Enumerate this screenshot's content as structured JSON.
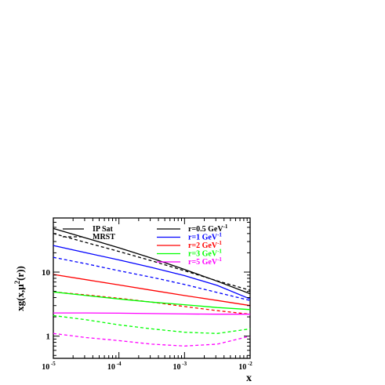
{
  "chart_data": {
    "type": "line",
    "title": "",
    "xlabel": "x",
    "ylabel": "xg(x,μ²(r))",
    "ylabel_parts": {
      "prefix": "xg(x,μ",
      "sup": "2",
      "suffix": "(r))"
    },
    "xscale": "log",
    "yscale": "log",
    "xlim": [
      1e-05,
      0.01
    ],
    "ylim": [
      0.45,
      70
    ],
    "xticks": [
      {
        "value": 1e-05,
        "base": "10",
        "exp": "-5"
      },
      {
        "value": 0.0001,
        "base": "10",
        "exp": "-4"
      },
      {
        "value": 0.001,
        "base": "10",
        "exp": "-3"
      },
      {
        "value": 0.01,
        "base": "10",
        "exp": "-2"
      }
    ],
    "yticks": [
      {
        "value": 1,
        "label": "1"
      },
      {
        "value": 10,
        "label": "10"
      }
    ],
    "grid": false,
    "legend_style": {
      "title": "",
      "entries": [
        {
          "label": "IP Sat",
          "dash": "solid"
        },
        {
          "label": "MRST",
          "dash": "dashed"
        }
      ]
    },
    "legend_r": [
      {
        "label": "r=0.5 GeV",
        "sup": "-1",
        "color": "#000000"
      },
      {
        "label": "r=1 GeV",
        "sup": "-1",
        "color": "#0000ff"
      },
      {
        "label": "r=2 GeV",
        "sup": "-1",
        "color": "#ff0000"
      },
      {
        "label": "r=3 GeV",
        "sup": "-1",
        "color": "#00ff00"
      },
      {
        "label": "r=5 GeV",
        "sup": "-1",
        "color": "#ff00ff"
      }
    ],
    "x": [
      1e-05,
      3.16e-05,
      0.0001,
      0.000316,
      0.001,
      0.00316,
      0.01
    ],
    "series": [
      {
        "model": "IP Sat",
        "r": "0.5",
        "color": "#000000",
        "dash": "solid",
        "values": [
          48,
          34,
          24,
          16.5,
          11,
          7.2,
          4.6
        ]
      },
      {
        "model": "MRST",
        "r": "0.5",
        "color": "#000000",
        "dash": "dashed",
        "values": [
          40,
          29,
          21,
          15,
          10.5,
          7.3,
          5.2
        ]
      },
      {
        "model": "IP Sat",
        "r": "1",
        "color": "#0000ff",
        "dash": "solid",
        "values": [
          26,
          20,
          15.5,
          11.8,
          8.8,
          6.2,
          3.8
        ]
      },
      {
        "model": "MRST",
        "r": "1",
        "color": "#0000ff",
        "dash": "dashed",
        "values": [
          17,
          13.5,
          10.5,
          8.3,
          6.4,
          4.8,
          3.6
        ]
      },
      {
        "model": "IP Sat",
        "r": "2",
        "color": "#ff0000",
        "dash": "solid",
        "values": [
          9.2,
          7.6,
          6.3,
          5.2,
          4.3,
          3.6,
          3.0
        ]
      },
      {
        "model": "MRST",
        "r": "2",
        "color": "#ff0000",
        "dash": "dashed",
        "values": [
          4.9,
          4.4,
          3.9,
          3.4,
          2.9,
          2.5,
          2.2
        ]
      },
      {
        "model": "IP Sat",
        "r": "3",
        "color": "#00ff00",
        "dash": "solid",
        "values": [
          4.9,
          4.3,
          3.8,
          3.4,
          3.1,
          2.8,
          2.6
        ]
      },
      {
        "model": "MRST",
        "r": "3",
        "color": "#00ff00",
        "dash": "dashed",
        "values": [
          2.1,
          1.8,
          1.5,
          1.3,
          1.15,
          1.1,
          1.3
        ]
      },
      {
        "model": "IP Sat",
        "r": "5",
        "color": "#ff00ff",
        "dash": "solid",
        "values": [
          2.3,
          2.3,
          2.28,
          2.25,
          2.22,
          2.2,
          2.2
        ]
      },
      {
        "model": "MRST",
        "r": "5",
        "color": "#ff00ff",
        "dash": "dashed",
        "values": [
          1.1,
          0.95,
          0.85,
          0.75,
          0.7,
          0.75,
          1.0
        ]
      }
    ]
  }
}
